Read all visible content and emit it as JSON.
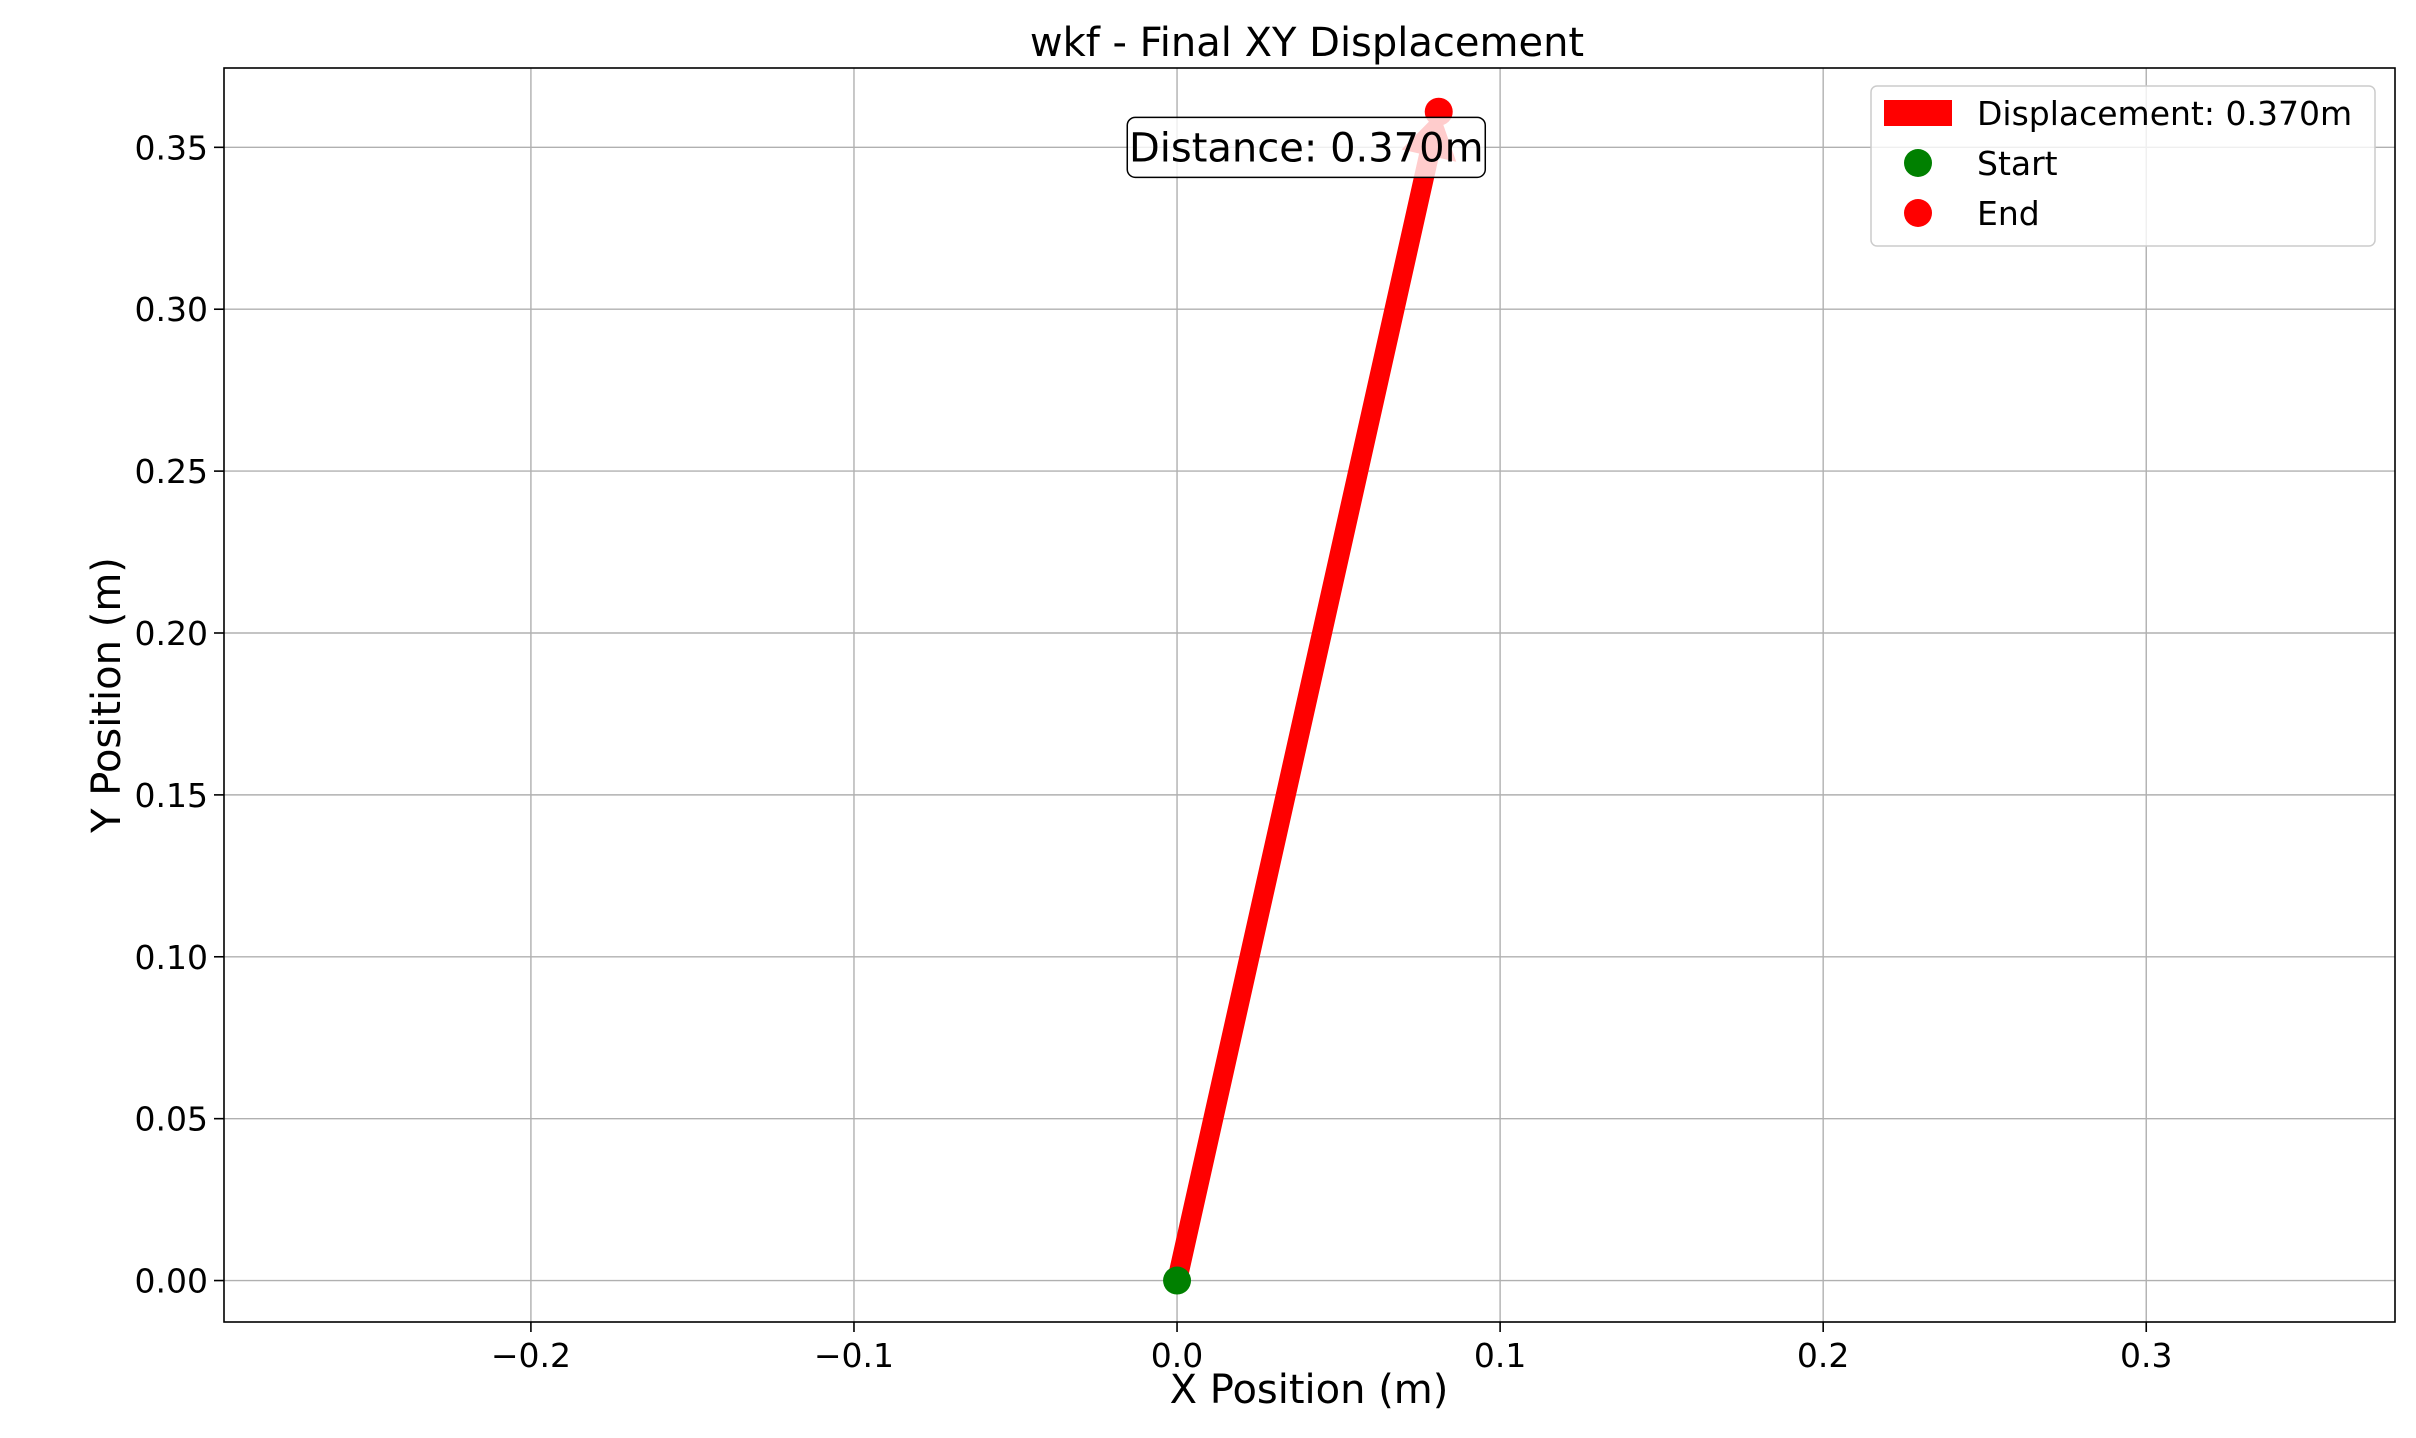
{
  "chart_data": {
    "type": "scatter",
    "title": "wkf - Final XY Displacement",
    "xlabel": "X Position (m)",
    "ylabel": "Y Position (m)",
    "xlim": [
      -0.295,
      0.377
    ],
    "ylim": [
      -0.0128,
      0.3745
    ],
    "grid": true,
    "legend_position": "upper right",
    "xticks": [
      -0.2,
      -0.1,
      0.0,
      0.1,
      0.2,
      0.3
    ],
    "xtick_labels": [
      "−0.2",
      "−0.1",
      "0.0",
      "0.1",
      "0.2",
      "0.3"
    ],
    "yticks": [
      0.0,
      0.05,
      0.1,
      0.15,
      0.2,
      0.25,
      0.3,
      0.35
    ],
    "ytick_labels": [
      "0.00",
      "0.05",
      "0.10",
      "0.15",
      "0.20",
      "0.25",
      "0.30",
      "0.35"
    ],
    "arrow": {
      "from": [
        0.0,
        0.0
      ],
      "to": [
        0.081,
        0.361
      ],
      "color": "#ff0000"
    },
    "start": {
      "x": 0.0,
      "y": 0.0,
      "color": "#008000"
    },
    "end": {
      "x": 0.081,
      "y": 0.361,
      "color": "#ff0000"
    },
    "annotation": {
      "text": "Distance: 0.370m",
      "x": 0.04,
      "y": 0.35
    },
    "legend": [
      {
        "label": "Displacement: 0.370m",
        "marker": "arrow",
        "color": "#ff0000"
      },
      {
        "label": "Start",
        "marker": "circle",
        "color": "#008000"
      },
      {
        "label": "End",
        "marker": "circle",
        "color": "#ff0000"
      }
    ]
  }
}
